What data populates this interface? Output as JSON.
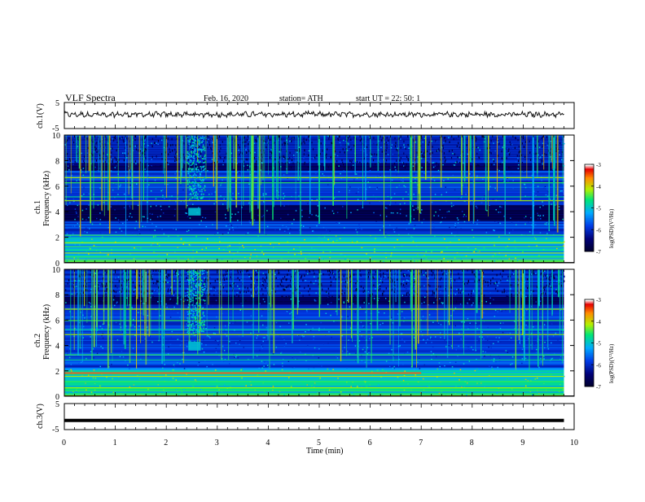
{
  "header": {
    "title": "VLF  Spectra",
    "date": "Feb. 16, 2020",
    "station": "station= ATH",
    "start": "start  UT  =    22: 50: 1"
  },
  "chart_data": [
    {
      "type": "line",
      "name": "ch1-waveform",
      "ylabel": "ch.1(V)",
      "ylim": [
        -5,
        5
      ],
      "yticks": [
        "5",
        "-5"
      ],
      "xlim": [
        0,
        10
      ]
    },
    {
      "type": "heatmap",
      "name": "ch1-spectrogram",
      "ylabel": "ch.1\nFrequency  (kHz)",
      "ylabel_lines": [
        "ch.1",
        "Frequency  (kHz)"
      ],
      "ylim": [
        0,
        10
      ],
      "yticks": [
        "0",
        "2",
        "4",
        "6",
        "8",
        "10"
      ],
      "xlim": [
        0,
        10
      ],
      "colorbar": {
        "label": "log(PSD)(V²/Hz)",
        "range": [
          -7,
          -3
        ],
        "ticks": [
          "-3",
          "-4",
          "-5",
          "-6",
          "-7"
        ]
      },
      "features": {
        "data_end_min": 9.8,
        "broadband_burst_min": [
          2.4,
          2.75
        ],
        "burst_band_khz": [
          3.7,
          4.3
        ],
        "quiet_band_khz": [
          3.4,
          4.5
        ]
      }
    },
    {
      "type": "heatmap",
      "name": "ch2-spectrogram",
      "ylabel": "ch.2\nFrequency  (kHz)",
      "ylabel_lines": [
        "ch.2",
        "Frequency  (kHz)"
      ],
      "ylim": [
        0,
        10
      ],
      "yticks": [
        "0",
        "2",
        "4",
        "6",
        "8",
        "10"
      ],
      "xlim": [
        0,
        10
      ],
      "colorbar": {
        "label": "log(PSD)(V²/Hz)",
        "range": [
          -7,
          -3
        ],
        "ticks": [
          "-3",
          "-4",
          "-5",
          "-6",
          "-7"
        ]
      },
      "features": {
        "data_end_min": 9.8,
        "broadband_burst_min": [
          2.4,
          2.75
        ],
        "burst_band_khz": [
          3.6,
          4.3
        ],
        "strong_line_khz": 1.9,
        "strong_line_end_min": 7.0
      }
    },
    {
      "type": "line",
      "name": "ch3-waveform",
      "ylabel": "ch.3(V)",
      "ylim": [
        -5,
        5
      ],
      "yticks": [
        "5",
        "-5"
      ],
      "xlim": [
        0,
        10
      ],
      "level_v": -1.5
    }
  ],
  "xaxis": {
    "label": "Time  (min)",
    "ticks": [
      "0",
      "1",
      "2",
      "3",
      "4",
      "5",
      "6",
      "7",
      "8",
      "9",
      "10"
    ]
  }
}
